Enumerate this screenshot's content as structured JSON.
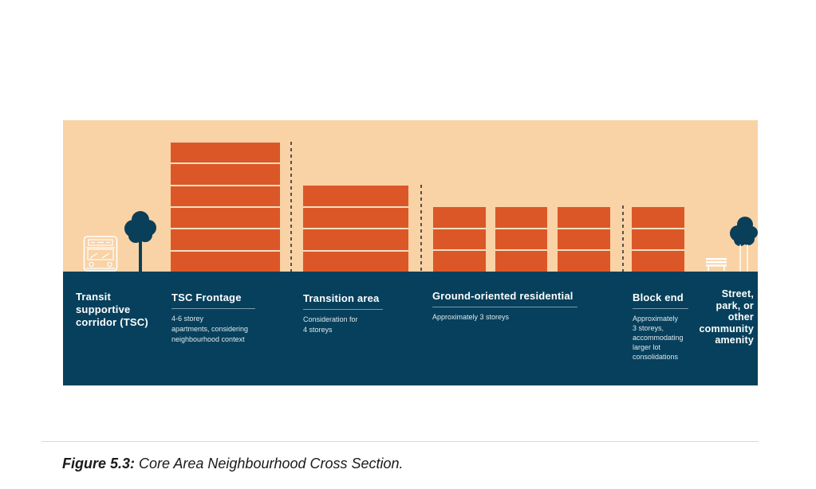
{
  "caption": {
    "prefix": "Figure 5.3:",
    "text": " Core Area Neighbourhood Cross Section."
  },
  "diagram": {
    "colors": {
      "sky": "#f9d2a6",
      "building_orange": "#dc5727",
      "floor_divider_cream": "#f2dfc0",
      "ground_navy": "#06405c",
      "tree_navy": "#0a3f59",
      "dashed_divider": "#55524a",
      "label_underline": "#7e9aac",
      "label_text": "#ffffff"
    },
    "icons": {
      "bus": "bus-icon",
      "tree": "tree-icon",
      "bench": "bench-icon"
    },
    "buildings": [
      {
        "name": "tsc-frontage-apartment-building",
        "storeys": 6
      },
      {
        "name": "transition-area-building",
        "storeys": 4
      },
      {
        "name": "ground-oriented-house-1",
        "storeys": 3
      },
      {
        "name": "ground-oriented-house-2",
        "storeys": 3
      },
      {
        "name": "ground-oriented-house-3",
        "storeys": 3
      },
      {
        "name": "block-end-building",
        "storeys": 3
      }
    ],
    "zones": [
      {
        "title": "Transit\nsupportive\ncorridor (TSC)",
        "description": ""
      },
      {
        "title": "TSC Frontage",
        "description": "4-6 storey\napartments, considering\nneighbourhood context"
      },
      {
        "title": "Transition area",
        "description": "Consideration for\n4 storeys"
      },
      {
        "title": "Ground-oriented residential",
        "description": "Approximately 3 storeys"
      },
      {
        "title": "Block end",
        "description": "Approximately\n3 storeys,\naccommodating\nlarger lot\nconsolidations"
      },
      {
        "title": "Street,\npark, or\nother\ncommunity\namenity",
        "description": ""
      }
    ]
  }
}
